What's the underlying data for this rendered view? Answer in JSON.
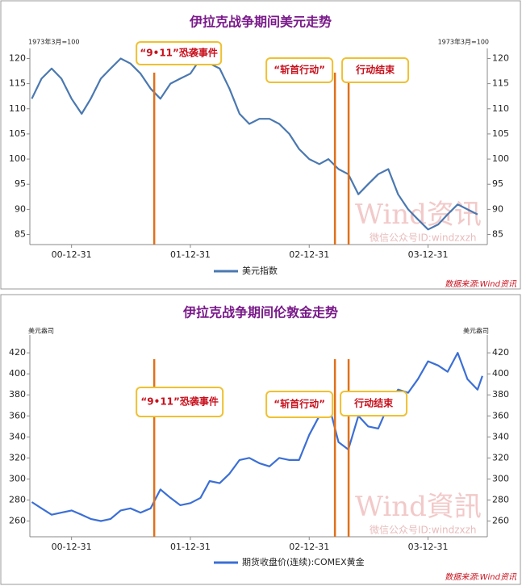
{
  "chart_data": [
    {
      "type": "line",
      "title": "伊拉克战争期间美元走势",
      "y_unit": "1973年3月=100",
      "x": [
        "00-08-31",
        "00-09-30",
        "00-10-31",
        "00-11-30",
        "00-12-31",
        "01-01-31",
        "01-02-28",
        "01-03-31",
        "01-04-30",
        "01-05-31",
        "01-06-30",
        "01-07-31",
        "01-08-31",
        "01-09-30",
        "01-10-31",
        "01-11-30",
        "01-12-31",
        "02-01-31",
        "02-02-28",
        "02-03-31",
        "02-04-30",
        "02-05-31",
        "02-06-30",
        "02-07-31",
        "02-08-31",
        "02-09-30",
        "02-10-31",
        "02-11-30",
        "02-12-31",
        "03-01-31",
        "03-02-28",
        "03-03-31",
        "03-04-30",
        "03-05-31",
        "03-06-30",
        "03-07-31",
        "03-08-31",
        "03-09-30",
        "03-10-31",
        "03-11-30",
        "03-12-31",
        "04-01-31",
        "04-02-29",
        "04-03-31",
        "04-04-30",
        "04-05-31"
      ],
      "series": [
        {
          "name": "美元指数",
          "color": "#4a78b0",
          "values": [
            112,
            116,
            118,
            116,
            112,
            109,
            112,
            116,
            118,
            120,
            119,
            117,
            114,
            112,
            115,
            116,
            117,
            120,
            119,
            118,
            114,
            109,
            107,
            108,
            108,
            107,
            105,
            102,
            100,
            99,
            100,
            98,
            97,
            93,
            95,
            97,
            98,
            93,
            90,
            88,
            86,
            87,
            89,
            91,
            90,
            89
          ]
        }
      ],
      "xlim": [
        "00-08-25",
        "04-06-30"
      ],
      "xticks": [
        "00-12-31",
        "01-12-31",
        "02-12-31",
        "03-12-31"
      ],
      "ylim": [
        83,
        122
      ],
      "yticks": [
        85,
        90,
        95,
        100,
        105,
        110,
        115,
        120
      ],
      "annotations": [
        {
          "text": "“9•11”恐袭事件",
          "x": "01-09-11"
        },
        {
          "text": "“斩首行动”",
          "x": "03-03-20"
        },
        {
          "text": "行动结束",
          "x": "03-05-01"
        }
      ],
      "watermark": "Wind资讯",
      "watermark_sub": "微信公众号ID:windzxzh",
      "source": "数据来源:Wind资讯"
    },
    {
      "type": "line",
      "title": "伊拉克战争期间伦敦金走势",
      "y_unit": "美元盎司",
      "x": [
        "00-08-31",
        "00-09-30",
        "00-10-31",
        "00-11-30",
        "00-12-31",
        "01-01-31",
        "01-02-28",
        "01-03-31",
        "01-04-30",
        "01-05-31",
        "01-06-30",
        "01-07-31",
        "01-08-31",
        "01-09-30",
        "01-10-31",
        "01-11-30",
        "01-12-31",
        "02-01-31",
        "02-02-28",
        "02-03-31",
        "02-04-30",
        "02-05-31",
        "02-06-30",
        "02-07-31",
        "02-08-31",
        "02-09-30",
        "02-10-31",
        "02-11-30",
        "02-12-31",
        "03-01-31",
        "03-02-28",
        "03-03-31",
        "03-04-30",
        "03-05-31",
        "03-06-30",
        "03-07-31",
        "03-08-31",
        "03-09-30",
        "03-10-31",
        "03-11-30",
        "03-12-31",
        "04-01-31",
        "04-02-29",
        "04-03-31",
        "04-04-30",
        "04-05-31",
        "04-06-15"
      ],
      "series": [
        {
          "name": "期货收盘价(连续):COMEX黄金",
          "color": "#3b6fd6",
          "values": [
            278,
            272,
            266,
            268,
            270,
            266,
            262,
            260,
            262,
            270,
            272,
            268,
            272,
            290,
            282,
            275,
            277,
            282,
            298,
            296,
            305,
            318,
            320,
            315,
            312,
            320,
            318,
            318,
            342,
            360,
            372,
            335,
            328,
            360,
            350,
            348,
            370,
            385,
            382,
            395,
            412,
            408,
            402,
            420,
            395,
            385,
            398
          ]
        }
      ],
      "xlim": [
        "00-08-25",
        "04-06-30"
      ],
      "xticks": [
        "00-12-31",
        "01-12-31",
        "02-12-31",
        "03-12-31"
      ],
      "ylim": [
        245,
        437
      ],
      "yticks": [
        260,
        280,
        300,
        320,
        340,
        360,
        380,
        400,
        420
      ],
      "annotations": [
        {
          "text": "“9•11”恐袭事件",
          "x": "01-09-11"
        },
        {
          "text": "“斩首行动”",
          "x": "03-03-20"
        },
        {
          "text": "行动结束",
          "x": "03-05-01"
        }
      ],
      "watermark": "Wind資訊",
      "watermark_sub": "微信公众号ID:windzxzh",
      "source": "数据来源:Wind资讯"
    }
  ]
}
